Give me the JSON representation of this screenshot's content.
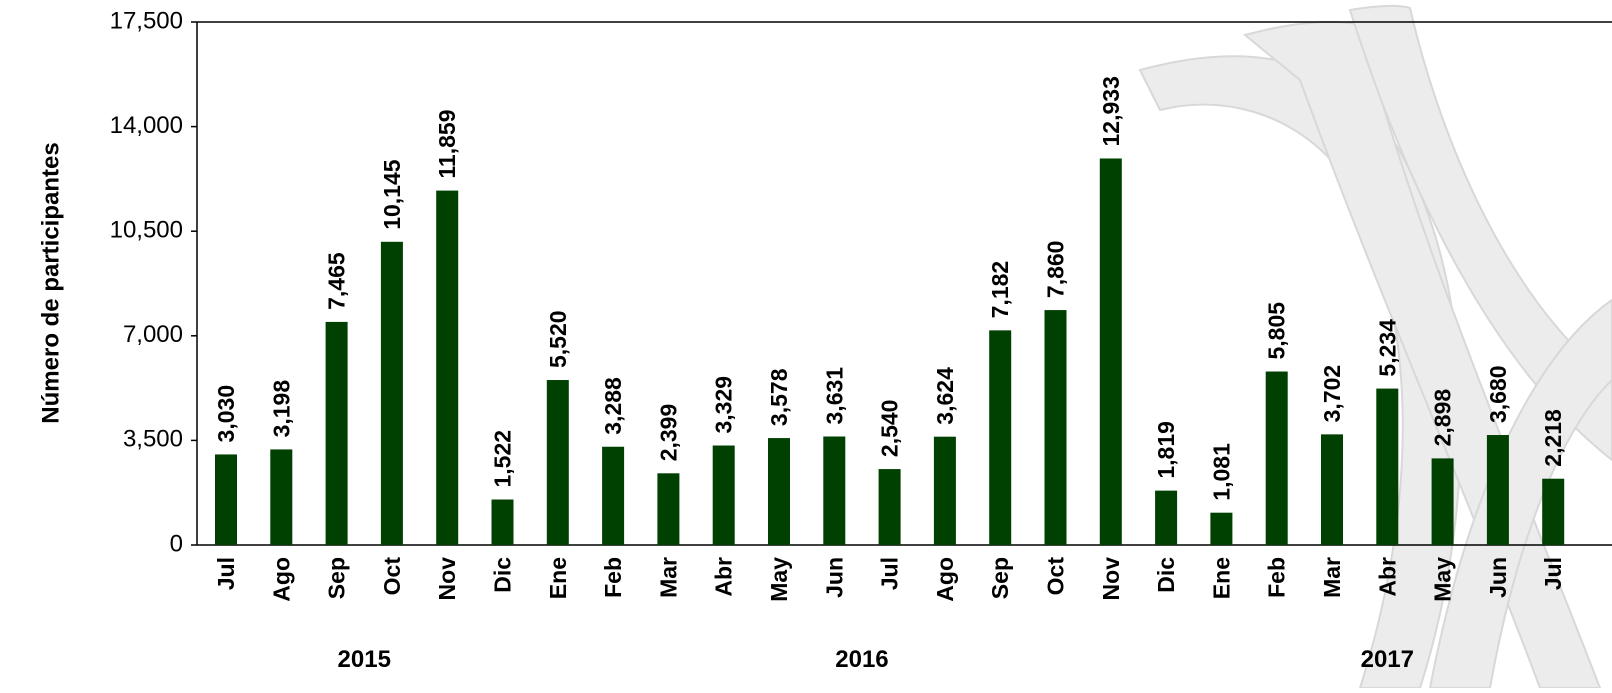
{
  "chart_data": {
    "type": "bar",
    "y_label": "Número de participantes",
    "color": "#004000",
    "ylim": [
      0,
      17500
    ],
    "yticks": [
      0,
      {
        "value": 3500,
        "label": "3,500"
      },
      {
        "value": 7000,
        "label": "7,000"
      },
      {
        "value": 10500,
        "label": "10,500"
      },
      {
        "value": 14000,
        "label": "14,000"
      },
      {
        "value": 17500,
        "label": "17,500"
      }
    ],
    "groups": [
      {
        "label": "2015",
        "categories": [
          "Jul",
          "Ago",
          "Sep",
          "Oct",
          "Nov",
          "Dic"
        ],
        "values": [
          3030,
          3198,
          7465,
          10145,
          11859,
          1522
        ],
        "value_labels": [
          "3,030",
          "3,198",
          "7,465",
          "10,145",
          "11,859",
          "1,522"
        ]
      },
      {
        "label": "2016",
        "categories": [
          "Ene",
          "Feb",
          "Mar",
          "Abr",
          "May",
          "Jun",
          "Jul",
          "Ago",
          "Sep",
          "Oct",
          "Nov",
          "Dic"
        ],
        "values": [
          5520,
          3288,
          2399,
          3329,
          3578,
          3631,
          2540,
          3624,
          7182,
          7860,
          12933,
          1819
        ],
        "value_labels": [
          "5,520",
          "3,288",
          "2,399",
          "3,329",
          "3,578",
          "3,631",
          "2,540",
          "3,624",
          "7,182",
          "7,860",
          "12,933",
          "1,819"
        ]
      },
      {
        "label": "2017",
        "categories": [
          "Ene",
          "Feb",
          "Mar",
          "Abr",
          "May",
          "Jun",
          "Jul"
        ],
        "values": [
          1081,
          5805,
          3702,
          5234,
          2898,
          3680,
          2218
        ],
        "value_labels": [
          "1,081",
          "5,805",
          "3,702",
          "5,234",
          "2,898",
          "3,680",
          "2,218"
        ]
      }
    ]
  }
}
